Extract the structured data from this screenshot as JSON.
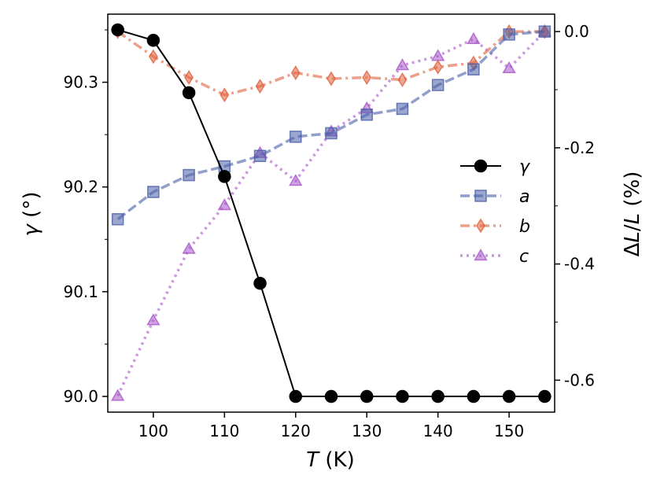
{
  "chart_data": {
    "type": "line",
    "x_label": {
      "italic": "T",
      "rest": " (K)"
    },
    "y_label_left": {
      "italic": "γ",
      "rest": " (°)"
    },
    "y_label_right": {
      "prefix": "Δ",
      "italic1": "L",
      "mid": "/",
      "italic2": "L",
      "rest": " (%)"
    },
    "x_range": [
      93.6,
      156.4
    ],
    "y_left_range": [
      89.985,
      90.365
    ],
    "y_right_range": [
      -0.655,
      0.03
    ],
    "x_ticks": [
      100,
      110,
      120,
      130,
      140,
      150
    ],
    "x_tick_labels": [
      "100",
      "110",
      "120",
      "130",
      "140",
      "150"
    ],
    "y_left_ticks": [
      90.0,
      90.1,
      90.2,
      90.3
    ],
    "y_left_tick_labels": [
      "90.0",
      "90.1",
      "90.2",
      "90.3"
    ],
    "y_left_minor_ticks": [
      90.05,
      90.15,
      90.25,
      90.35
    ],
    "y_right_ticks": [
      0.0,
      -0.2,
      -0.4,
      -0.6
    ],
    "y_right_tick_labels": [
      "0.0",
      "-0.2",
      "-0.4",
      "-0.6"
    ],
    "y_right_minor_ticks": [
      -0.1,
      -0.3,
      -0.5
    ],
    "series": [
      {
        "name": "γ",
        "axis": "left",
        "color": "#000000",
        "marker": "circle",
        "dash": "solid",
        "x": [
          95,
          100,
          105,
          110,
          115,
          120,
          125,
          130,
          135,
          140,
          145,
          150,
          155
        ],
        "values": [
          90.35,
          90.34,
          90.29,
          90.21,
          90.108,
          90.0,
          90.0,
          90.0,
          90.0,
          90.0,
          90.0,
          90.0,
          90.0
        ]
      },
      {
        "name": "a",
        "axis": "right",
        "color": "#4a5fa8",
        "marker": "square",
        "dash": "dashed",
        "x": [
          95,
          100,
          105,
          110,
          115,
          120,
          125,
          130,
          135,
          140,
          145,
          150,
          155
        ],
        "values": [
          -0.323,
          -0.276,
          -0.247,
          -0.232,
          -0.214,
          -0.181,
          -0.175,
          -0.143,
          -0.133,
          -0.092,
          -0.065,
          -0.005,
          0.0
        ]
      },
      {
        "name": "b",
        "axis": "right",
        "color": "#e0603c",
        "marker": "diamond",
        "dash": "dashdot",
        "x": [
          95,
          100,
          105,
          110,
          115,
          120,
          125,
          130,
          135,
          140,
          145,
          150,
          155
        ],
        "values": [
          0.0,
          -0.043,
          -0.079,
          -0.109,
          -0.094,
          -0.071,
          -0.081,
          -0.079,
          -0.083,
          -0.061,
          -0.054,
          0.0,
          0.0
        ]
      },
      {
        "name": "c",
        "axis": "right",
        "color": "#a855c9",
        "marker": "triangle",
        "dash": "dotted",
        "x": [
          95,
          100,
          105,
          110,
          115,
          120,
          125,
          130,
          135,
          140,
          145,
          150,
          155
        ],
        "values": [
          -0.627,
          -0.497,
          -0.374,
          -0.299,
          -0.209,
          -0.257,
          -0.172,
          -0.132,
          -0.058,
          -0.042,
          -0.013,
          -0.063,
          0.0
        ]
      }
    ],
    "legend": {
      "position": "right-middle",
      "entries": [
        "γ",
        "a",
        "b",
        "c"
      ]
    }
  }
}
